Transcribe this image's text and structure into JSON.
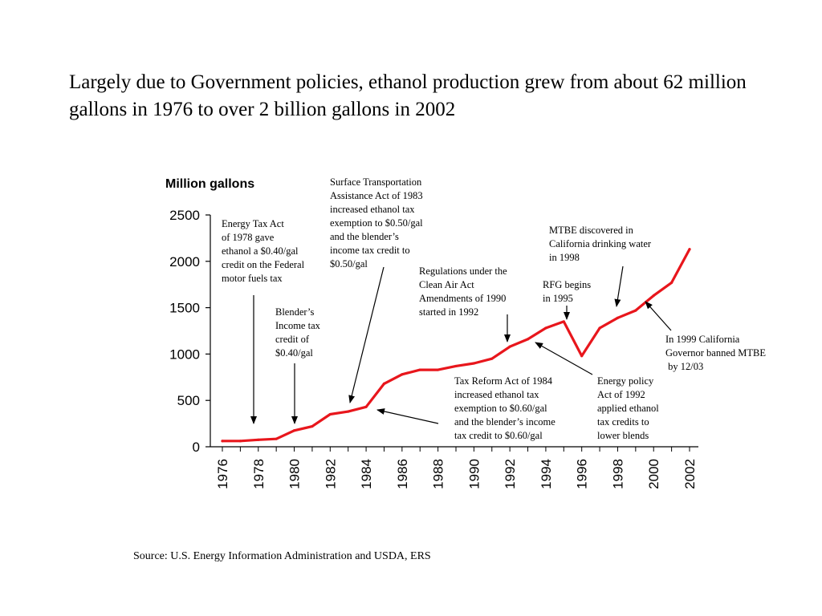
{
  "slide": {
    "title": "Largely due to Government policies, ethanol production grew from about 62 million gallons in 1976 to over 2 billion gallons in 2002",
    "source": "Source: U.S. Energy Information Administration and USDA, ERS"
  },
  "chart_data": {
    "type": "line",
    "title": "Million gallons",
    "xlabel": "",
    "ylabel": "",
    "xlim": [
      1976,
      2002
    ],
    "ylim": [
      0,
      2500
    ],
    "x_ticks": [
      "1976",
      "1978",
      "1980",
      "1982",
      "1984",
      "1986",
      "1988",
      "1990",
      "1992",
      "1994",
      "1996",
      "1998",
      "2000",
      "2002"
    ],
    "y_ticks": [
      0,
      500,
      1000,
      1500,
      2000,
      2500
    ],
    "grid": false,
    "line_color": "#e8161c",
    "x": [
      1976,
      1977,
      1978,
      1979,
      1980,
      1981,
      1982,
      1983,
      1984,
      1985,
      1986,
      1987,
      1988,
      1989,
      1990,
      1991,
      1992,
      1993,
      1994,
      1995,
      1996,
      1997,
      1998,
      1999,
      2000,
      2001,
      2002
    ],
    "values": [
      62,
      62,
      75,
      85,
      175,
      220,
      350,
      380,
      430,
      680,
      780,
      830,
      830,
      870,
      900,
      950,
      1080,
      1160,
      1280,
      1350,
      980,
      1280,
      1390,
      1470,
      1630,
      1770,
      2130
    ],
    "annotations": [
      {
        "lines": [
          "Energy Tax Act",
          "of 1978 gave",
          "ethanol a $0.40/gal",
          "credit on the Federal",
          "motor fuels tax"
        ]
      },
      {
        "lines": [
          "Blender’s",
          "Income tax",
          "credit of",
          "$0.40/gal"
        ]
      },
      {
        "lines": [
          "Surface Transportation",
          "Assistance Act of 1983",
          "increased ethanol tax",
          "exemption to $0.50/gal",
          "and the blender’s",
          "income tax credit to",
          "$0.50/gal"
        ]
      },
      {
        "lines": [
          "Regulations under the",
          "Clean Air Act",
          "Amendments of 1990",
          "started in 1992"
        ]
      },
      {
        "lines": [
          "Tax Reform Act of 1984",
          "increased ethanol tax",
          "exemption to $0.60/gal",
          "and the blender’s income",
          "tax credit to $0.60/gal"
        ]
      },
      {
        "lines": [
          "RFG begins",
          "in 1995"
        ]
      },
      {
        "lines": [
          "MTBE discovered in",
          "California drinking water",
          "in 1998"
        ]
      },
      {
        "lines": [
          "Energy policy",
          "Act of 1992",
          "applied ethanol",
          "tax credits to",
          "lower blends"
        ]
      },
      {
        "lines": [
          "In 1999 California",
          "Governor banned MTBE",
          " by 12/03"
        ]
      }
    ]
  }
}
